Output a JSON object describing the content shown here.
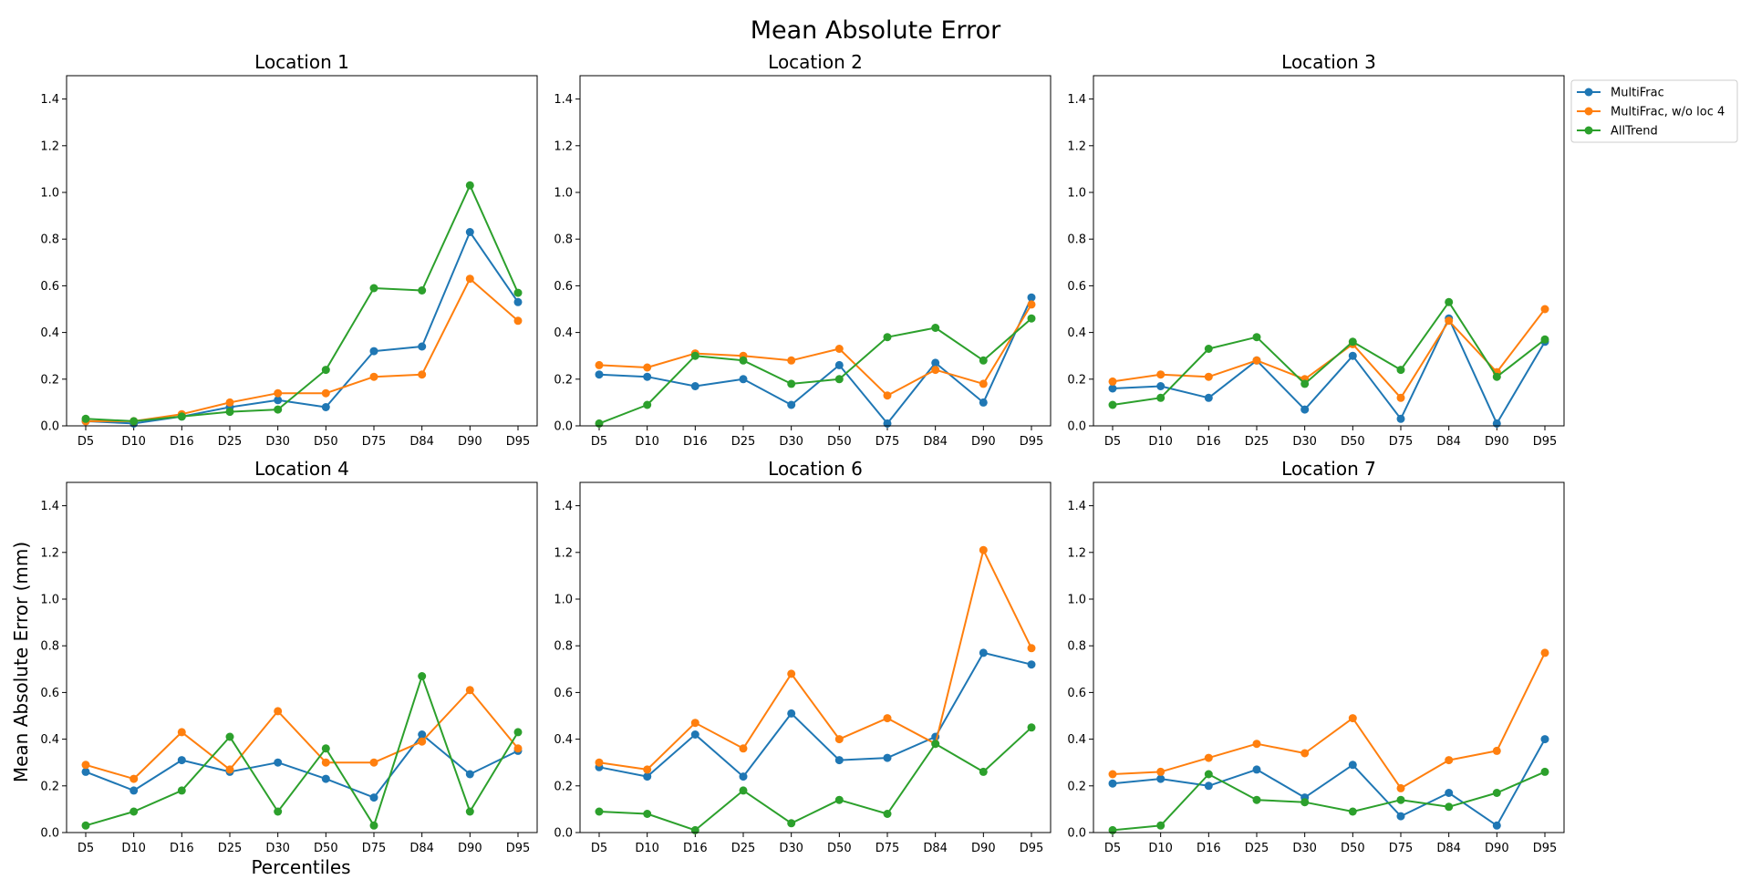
{
  "figure": {
    "title": "Mean Absolute Error",
    "ylabel": "Mean Absolute Error (mm)",
    "xlabel": "Percentiles"
  },
  "legend": {
    "placement": "outside-right-top",
    "entries": [
      {
        "label": "MultiFrac",
        "color": "#1f77b4"
      },
      {
        "label": "MultiFrac, w/o loc 4",
        "color": "#ff7f0e"
      },
      {
        "label": "AllTrend",
        "color": "#2ca02c"
      }
    ]
  },
  "chart_data": [
    {
      "type": "line",
      "title": "Location 1",
      "categories": [
        "D5",
        "D10",
        "D16",
        "D25",
        "D30",
        "D50",
        "D75",
        "D84",
        "D90",
        "D95"
      ],
      "ylim": [
        0,
        1.5
      ],
      "yticks": [
        "0.0",
        "0.2",
        "0.4",
        "0.6",
        "0.8",
        "1.0",
        "1.2",
        "1.4"
      ],
      "grid": false,
      "series": [
        {
          "name": "MultiFrac",
          "color": "#1f77b4",
          "values": [
            0.02,
            0.01,
            0.04,
            0.08,
            0.11,
            0.08,
            0.32,
            0.34,
            0.83,
            0.53
          ]
        },
        {
          "name": "MultiFrac, w/o loc 4",
          "color": "#ff7f0e",
          "values": [
            0.02,
            0.02,
            0.05,
            0.1,
            0.14,
            0.14,
            0.21,
            0.22,
            0.63,
            0.45
          ]
        },
        {
          "name": "AllTrend",
          "color": "#2ca02c",
          "values": [
            0.03,
            0.02,
            0.04,
            0.06,
            0.07,
            0.24,
            0.59,
            0.58,
            1.03,
            0.57
          ]
        }
      ]
    },
    {
      "type": "line",
      "title": "Location 2",
      "categories": [
        "D5",
        "D10",
        "D16",
        "D25",
        "D30",
        "D50",
        "D75",
        "D84",
        "D90",
        "D95"
      ],
      "ylim": [
        0,
        1.5
      ],
      "yticks": [
        "0.0",
        "0.2",
        "0.4",
        "0.6",
        "0.8",
        "1.0",
        "1.2",
        "1.4"
      ],
      "grid": false,
      "series": [
        {
          "name": "MultiFrac",
          "color": "#1f77b4",
          "values": [
            0.22,
            0.21,
            0.17,
            0.2,
            0.09,
            0.26,
            0.01,
            0.27,
            0.1,
            0.55
          ]
        },
        {
          "name": "MultiFrac, w/o loc 4",
          "color": "#ff7f0e",
          "values": [
            0.26,
            0.25,
            0.31,
            0.3,
            0.28,
            0.33,
            0.13,
            0.24,
            0.18,
            0.52
          ]
        },
        {
          "name": "AllTrend",
          "color": "#2ca02c",
          "values": [
            0.01,
            0.09,
            0.3,
            0.28,
            0.18,
            0.2,
            0.38,
            0.42,
            0.28,
            0.46
          ]
        }
      ]
    },
    {
      "type": "line",
      "title": "Location 3",
      "categories": [
        "D5",
        "D10",
        "D16",
        "D25",
        "D30",
        "D50",
        "D75",
        "D84",
        "D90",
        "D95"
      ],
      "ylim": [
        0,
        1.5
      ],
      "yticks": [
        "0.0",
        "0.2",
        "0.4",
        "0.6",
        "0.8",
        "1.0",
        "1.2",
        "1.4"
      ],
      "grid": false,
      "series": [
        {
          "name": "MultiFrac",
          "color": "#1f77b4",
          "values": [
            0.16,
            0.17,
            0.12,
            0.28,
            0.07,
            0.3,
            0.03,
            0.46,
            0.01,
            0.36
          ]
        },
        {
          "name": "MultiFrac, w/o loc 4",
          "color": "#ff7f0e",
          "values": [
            0.19,
            0.22,
            0.21,
            0.28,
            0.2,
            0.35,
            0.12,
            0.45,
            0.23,
            0.5
          ]
        },
        {
          "name": "AllTrend",
          "color": "#2ca02c",
          "values": [
            0.09,
            0.12,
            0.33,
            0.38,
            0.18,
            0.36,
            0.24,
            0.53,
            0.21,
            0.37
          ]
        }
      ]
    },
    {
      "type": "line",
      "title": "Location 4",
      "categories": [
        "D5",
        "D10",
        "D16",
        "D25",
        "D30",
        "D50",
        "D75",
        "D84",
        "D90",
        "D95"
      ],
      "ylim": [
        0,
        1.5
      ],
      "yticks": [
        "0.0",
        "0.2",
        "0.4",
        "0.6",
        "0.8",
        "1.0",
        "1.2",
        "1.4"
      ],
      "grid": false,
      "series": [
        {
          "name": "MultiFrac",
          "color": "#1f77b4",
          "values": [
            0.26,
            0.18,
            0.31,
            0.26,
            0.3,
            0.23,
            0.15,
            0.42,
            0.25,
            0.35
          ]
        },
        {
          "name": "MultiFrac, w/o loc 4",
          "color": "#ff7f0e",
          "values": [
            0.29,
            0.23,
            0.43,
            0.27,
            0.52,
            0.3,
            0.3,
            0.39,
            0.61,
            0.36
          ]
        },
        {
          "name": "AllTrend",
          "color": "#2ca02c",
          "values": [
            0.03,
            0.09,
            0.18,
            0.41,
            0.09,
            0.36,
            0.03,
            0.67,
            0.09,
            0.43
          ]
        }
      ]
    },
    {
      "type": "line",
      "title": "Location 6",
      "categories": [
        "D5",
        "D10",
        "D16",
        "D25",
        "D30",
        "D50",
        "D75",
        "D84",
        "D90",
        "D95"
      ],
      "ylim": [
        0,
        1.5
      ],
      "yticks": [
        "0.0",
        "0.2",
        "0.4",
        "0.6",
        "0.8",
        "1.0",
        "1.2",
        "1.4"
      ],
      "grid": false,
      "series": [
        {
          "name": "MultiFrac",
          "color": "#1f77b4",
          "values": [
            0.28,
            0.24,
            0.42,
            0.24,
            0.51,
            0.31,
            0.32,
            0.41,
            0.77,
            0.72
          ]
        },
        {
          "name": "MultiFrac, w/o loc 4",
          "color": "#ff7f0e",
          "values": [
            0.3,
            0.27,
            0.47,
            0.36,
            0.68,
            0.4,
            0.49,
            0.38,
            1.21,
            0.79
          ]
        },
        {
          "name": "AllTrend",
          "color": "#2ca02c",
          "values": [
            0.09,
            0.08,
            0.01,
            0.18,
            0.04,
            0.14,
            0.08,
            0.38,
            0.26,
            0.45
          ]
        }
      ]
    },
    {
      "type": "line",
      "title": "Location 7",
      "categories": [
        "D5",
        "D10",
        "D16",
        "D25",
        "D30",
        "D50",
        "D75",
        "D84",
        "D90",
        "D95"
      ],
      "ylim": [
        0,
        1.5
      ],
      "yticks": [
        "0.0",
        "0.2",
        "0.4",
        "0.6",
        "0.8",
        "1.0",
        "1.2",
        "1.4"
      ],
      "grid": false,
      "series": [
        {
          "name": "MultiFrac",
          "color": "#1f77b4",
          "values": [
            0.21,
            0.23,
            0.2,
            0.27,
            0.15,
            0.29,
            0.07,
            0.17,
            0.03,
            0.4
          ]
        },
        {
          "name": "MultiFrac, w/o loc 4",
          "color": "#ff7f0e",
          "values": [
            0.25,
            0.26,
            0.32,
            0.38,
            0.34,
            0.49,
            0.19,
            0.31,
            0.35,
            0.77
          ]
        },
        {
          "name": "AllTrend",
          "color": "#2ca02c",
          "values": [
            0.01,
            0.03,
            0.25,
            0.14,
            0.13,
            0.09,
            0.14,
            0.11,
            0.17,
            0.26
          ]
        }
      ]
    }
  ]
}
